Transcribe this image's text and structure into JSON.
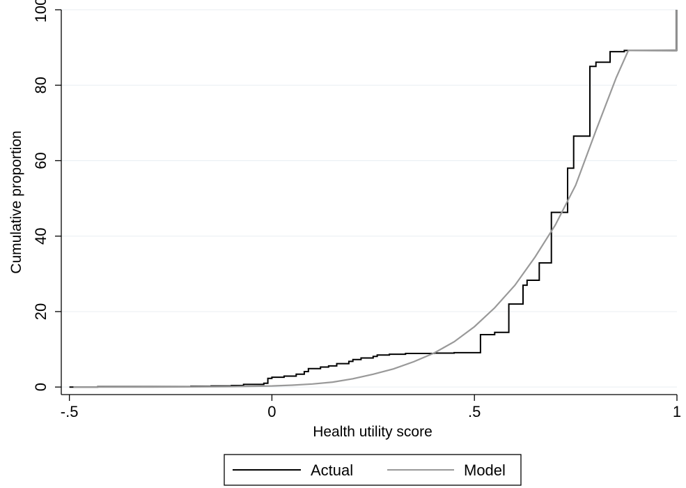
{
  "chart_data": {
    "type": "line",
    "title": "",
    "xlabel": "Health utility score",
    "ylabel": "Cumulative proportion",
    "xlim": [
      -0.52,
      1.0
    ],
    "ylim": [
      -2,
      100
    ],
    "x_ticks": [
      -0.5,
      0,
      0.5,
      1
    ],
    "x_tick_labels": [
      "-.5",
      "0",
      ".5",
      "1"
    ],
    "y_ticks": [
      0,
      20,
      40,
      60,
      80,
      100
    ],
    "y_tick_labels": [
      "0",
      "20",
      "40",
      "60",
      "80",
      "100"
    ],
    "grid": "horizontal",
    "legend_position": "bottom",
    "series": [
      {
        "name": "Actual",
        "color": "#000000",
        "step": true,
        "points": [
          [
            -0.5,
            0
          ],
          [
            -0.43,
            0.1
          ],
          [
            -0.3,
            0.1
          ],
          [
            -0.2,
            0.2
          ],
          [
            -0.15,
            0.3
          ],
          [
            -0.1,
            0.4
          ],
          [
            -0.07,
            0.7
          ],
          [
            -0.02,
            1.0
          ],
          [
            -0.01,
            2.3
          ],
          [
            0.0,
            2.6
          ],
          [
            0.03,
            2.9
          ],
          [
            0.06,
            3.4
          ],
          [
            0.08,
            4.1
          ],
          [
            0.09,
            4.9
          ],
          [
            0.12,
            5.3
          ],
          [
            0.14,
            5.6
          ],
          [
            0.16,
            6.2
          ],
          [
            0.19,
            6.8
          ],
          [
            0.2,
            7.3
          ],
          [
            0.22,
            7.7
          ],
          [
            0.25,
            8.1
          ],
          [
            0.26,
            8.5
          ],
          [
            0.29,
            8.7
          ],
          [
            0.33,
            8.9
          ],
          [
            0.4,
            9.0
          ],
          [
            0.45,
            9.1
          ],
          [
            0.515,
            13.9
          ],
          [
            0.55,
            14.5
          ],
          [
            0.585,
            22.0
          ],
          [
            0.62,
            27.0
          ],
          [
            0.63,
            28.3
          ],
          [
            0.66,
            32.9
          ],
          [
            0.69,
            46.3
          ],
          [
            0.73,
            58.0
          ],
          [
            0.745,
            66.5
          ],
          [
            0.785,
            85.0
          ],
          [
            0.8,
            86.1
          ],
          [
            0.835,
            88.9
          ],
          [
            0.87,
            89.2
          ],
          [
            0.999,
            100
          ]
        ]
      },
      {
        "name": "Model",
        "color": "#999999",
        "step": false,
        "points": [
          [
            -0.49,
            0
          ],
          [
            -0.3,
            0.02
          ],
          [
            -0.2,
            0.05
          ],
          [
            -0.1,
            0.12
          ],
          [
            0.0,
            0.3
          ],
          [
            0.05,
            0.5
          ],
          [
            0.1,
            0.8
          ],
          [
            0.15,
            1.3
          ],
          [
            0.2,
            2.2
          ],
          [
            0.25,
            3.4
          ],
          [
            0.3,
            4.8
          ],
          [
            0.35,
            6.7
          ],
          [
            0.4,
            9.0
          ],
          [
            0.45,
            12.0
          ],
          [
            0.5,
            16.0
          ],
          [
            0.55,
            21.0
          ],
          [
            0.6,
            27.0
          ],
          [
            0.65,
            34.5
          ],
          [
            0.7,
            43.0
          ],
          [
            0.75,
            53.5
          ],
          [
            0.8,
            68.0
          ],
          [
            0.85,
            82.0
          ],
          [
            0.88,
            89.2
          ],
          [
            0.99,
            89.3
          ],
          [
            1.0,
            89.3
          ],
          [
            1.0,
            100
          ]
        ]
      }
    ]
  }
}
